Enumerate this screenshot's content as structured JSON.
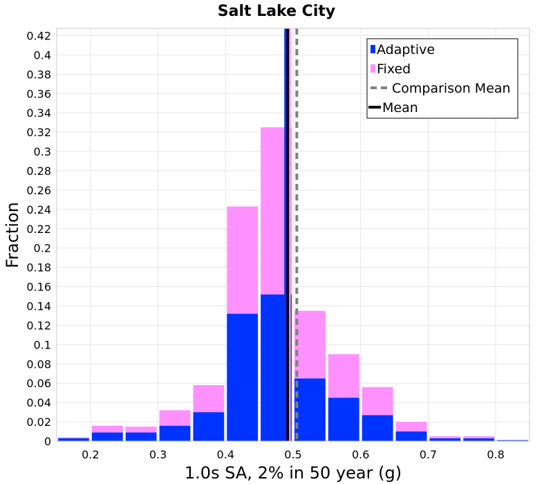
{
  "chart_data": {
    "type": "bar",
    "stacked": true,
    "title": "Salt Lake City",
    "xlabel": "1.0s SA, 2% in 50 year (g)",
    "ylabel": "Fraction",
    "xlim": [
      0.15,
      0.85
    ],
    "ylim": [
      0,
      0.4275
    ],
    "x_ticks": [
      "0.2",
      "0.3",
      "0.4",
      "0.5",
      "0.6",
      "0.7",
      "0.8"
    ],
    "y_ticks": [
      "0",
      "0.02",
      "0.04",
      "0.06",
      "0.08",
      "0.1",
      "0.12",
      "0.14",
      "0.16",
      "0.18",
      "0.2",
      "0.22",
      "0.24",
      "0.26",
      "0.28",
      "0.3",
      "0.32",
      "0.34",
      "0.36",
      "0.38",
      "0.4",
      "0.42"
    ],
    "grid": true,
    "legend_position": "top-right",
    "bin_width": 0.05,
    "bin_centers": [
      0.175,
      0.225,
      0.275,
      0.325,
      0.375,
      0.425,
      0.475,
      0.525,
      0.575,
      0.625,
      0.675,
      0.725,
      0.775,
      0.825
    ],
    "series": [
      {
        "name": "Adaptive",
        "color": "#0033ff",
        "values": [
          0.003,
          0.009,
          0.009,
          0.016,
          0.03,
          0.132,
          0.152,
          0.065,
          0.045,
          0.027,
          0.01,
          0.003,
          0.003,
          0.001
        ]
      },
      {
        "name": "Fixed",
        "color": "#ff91ff",
        "values": [
          0.001,
          0.007,
          0.006,
          0.016,
          0.028,
          0.111,
          0.173,
          0.07,
          0.045,
          0.029,
          0.01,
          0.002,
          0.002,
          0.0
        ]
      }
    ],
    "reference_lines": [
      {
        "name": "Mean",
        "x": 0.492,
        "color": "#000000",
        "style": "solid"
      },
      {
        "name": "Comparison Mean",
        "x": 0.5055,
        "color": "#808080",
        "style": "dashed"
      }
    ],
    "extra_lines": [
      {
        "x": 0.4885,
        "color": "#0033ff"
      },
      {
        "x": 0.495,
        "color": "#ff91ff"
      }
    ],
    "legend": [
      {
        "label": "Adaptive",
        "kind": "bar",
        "color": "#0033ff"
      },
      {
        "label": "Fixed",
        "kind": "bar",
        "color": "#ff91ff"
      },
      {
        "label": "Comparison Mean",
        "kind": "dashed",
        "color": "#808080"
      },
      {
        "label": "Mean",
        "kind": "solid",
        "color": "#000000"
      }
    ]
  }
}
